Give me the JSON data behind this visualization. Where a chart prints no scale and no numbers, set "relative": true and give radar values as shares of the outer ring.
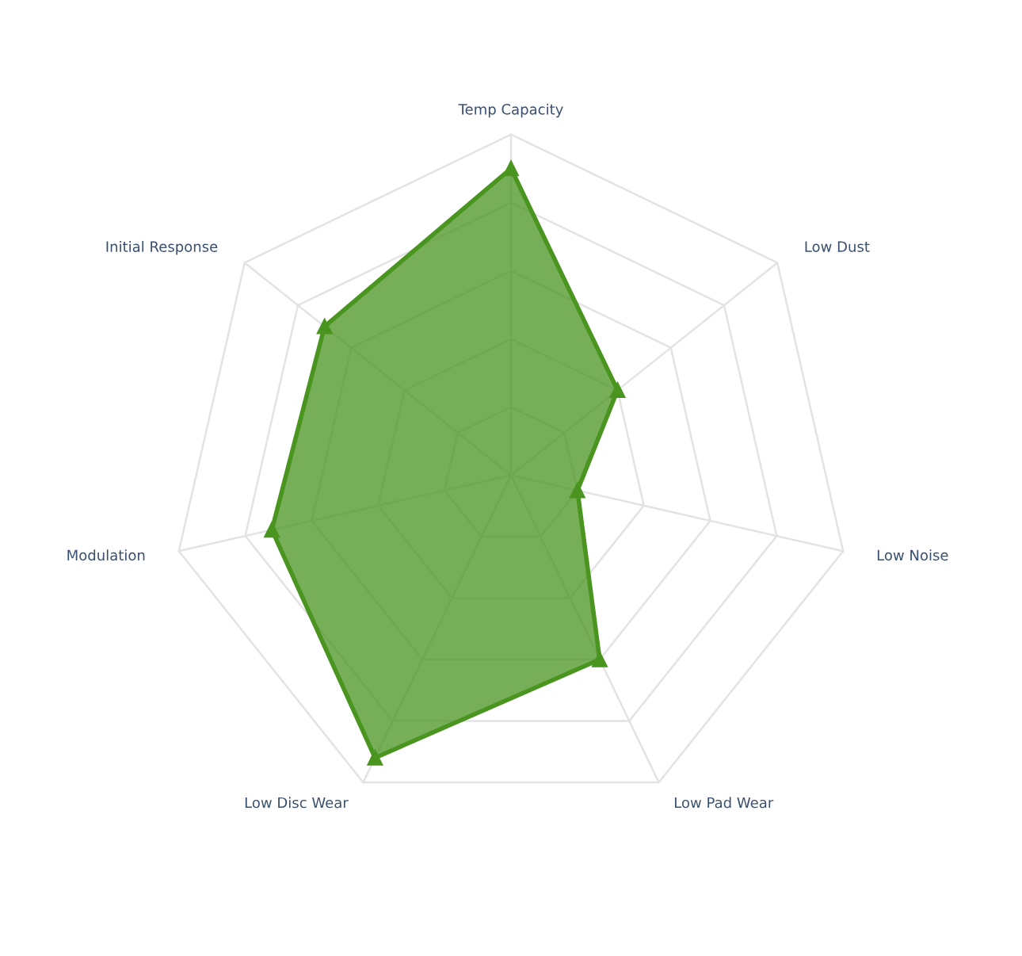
{
  "chart_data": {
    "type": "radar",
    "relative": true,
    "grid": true,
    "marker": "triangle",
    "line_style": "solid",
    "categories": [
      "Temp Capacity",
      "Low Dust",
      "Low Noise",
      "Low Pad Wear",
      "Low Disc Wear",
      "Modulation",
      "Initial Response"
    ],
    "series": [
      {
        "color": "#4a9420",
        "values": [
          0.9,
          0.4,
          0.2,
          0.6,
          0.92,
          0.72,
          0.7
        ]
      }
    ]
  }
}
